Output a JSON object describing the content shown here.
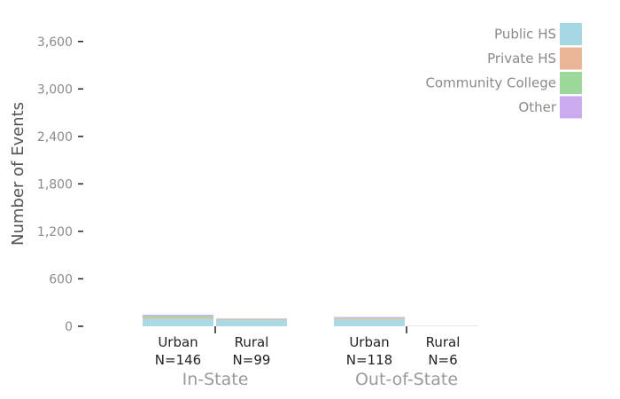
{
  "chart_data": {
    "type": "bar",
    "stacked": true,
    "ylabel": "Number of Events",
    "ylim": [
      0,
      3900
    ],
    "yticks": [
      0,
      600,
      1200,
      1800,
      2400,
      3000,
      3600
    ],
    "ytick_labels": [
      "0",
      "600",
      "1,200",
      "1,800",
      "2,400",
      "3,000",
      "3,600"
    ],
    "groups": [
      {
        "label": "In-State",
        "categories": [
          {
            "label": "Urban",
            "n_label": "N=146"
          },
          {
            "label": "Rural",
            "n_label": "N=99"
          }
        ]
      },
      {
        "label": "Out-of-State",
        "categories": [
          {
            "label": "Urban",
            "n_label": "N=118"
          },
          {
            "label": "Rural",
            "n_label": "N=6"
          }
        ]
      }
    ],
    "series": [
      {
        "name": "Public HS",
        "color": "#a6d8e4",
        "values": [
          95,
          78,
          82,
          4
        ]
      },
      {
        "name": "Private HS",
        "color": "#ebb597",
        "values": [
          12,
          6,
          10,
          1
        ]
      },
      {
        "name": "Community College",
        "color": "#9cd89a",
        "values": [
          22,
          8,
          12,
          0
        ]
      },
      {
        "name": "Other",
        "color": "#cbaaf0",
        "values": [
          17,
          7,
          14,
          1
        ]
      }
    ],
    "legend_position": "top-right",
    "grid": false
  }
}
